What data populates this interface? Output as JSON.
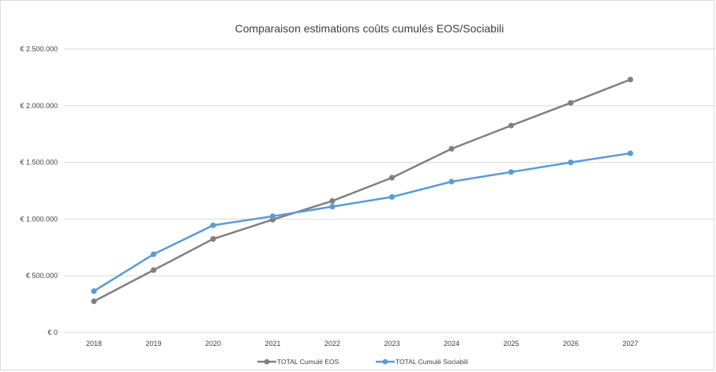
{
  "chart_data": {
    "type": "line",
    "title": "Comparaison estimations coûts cumulés EOS/Sociabili",
    "xlabel": "",
    "ylabel": "",
    "categories": [
      "2018",
      "2019",
      "2020",
      "2021",
      "2022",
      "2023",
      "2024",
      "2025",
      "2026",
      "2027"
    ],
    "ylim": [
      0,
      2500000
    ],
    "y_ticks": [
      0,
      500000,
      1000000,
      1500000,
      2000000,
      2500000
    ],
    "y_tick_labels": [
      "€ 0",
      "€ 500.000",
      "€ 1.000.000",
      "€ 1.500.000",
      "€ 2.000.000",
      "€ 2.500.000"
    ],
    "grid": true,
    "legend_position": "bottom",
    "series": [
      {
        "name": "TOTAL Cumulé EOS",
        "color": "#808080",
        "values": [
          275000,
          550000,
          825000,
          995000,
          1160000,
          1365000,
          1620000,
          1825000,
          2025000,
          2230000
        ]
      },
      {
        "name": "TOTAL Cumulé Sociabili",
        "color": "#5b9bd5",
        "values": [
          365000,
          690000,
          945000,
          1025000,
          1110000,
          1195000,
          1330000,
          1415000,
          1500000,
          1580000
        ]
      }
    ]
  }
}
